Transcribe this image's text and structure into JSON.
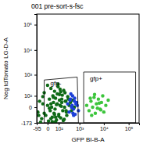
{
  "chart_data": {
    "type": "scatter",
    "title": "001 pre-sort-s-fsc",
    "x_label": "GFP BI-B-A",
    "y_label": "Neg tdTomato LG-D-A",
    "log": true,
    "xlim": [
      -95,
      262144
    ],
    "ylim": [
      -173,
      262144
    ],
    "xticks": [
      -95,
      0,
      {
        "value": 100,
        "label": "10²"
      },
      {
        "value": 1000,
        "label": "10³"
      },
      {
        "value": 10000,
        "label": "10⁴"
      },
      {
        "value": 100000,
        "label": "10⁵"
      }
    ],
    "yticks": [
      -173,
      0,
      {
        "value": 100,
        "label": "10²"
      },
      {
        "value": 1000,
        "label": "10³"
      },
      {
        "value": 10000,
        "label": "10⁴"
      },
      {
        "value": 100000,
        "label": "10⁵"
      }
    ],
    "series": [
      {
        "color": "#0f6a17",
        "x": [
          -80,
          -60,
          -40,
          -30,
          -20,
          -10,
          0,
          5,
          10,
          15,
          20,
          25,
          30,
          35,
          40,
          45,
          50,
          55,
          60,
          70,
          80,
          90,
          100,
          110,
          120,
          130,
          150,
          170,
          190,
          210,
          240,
          270,
          300,
          350,
          400,
          450,
          500,
          600,
          -50,
          -20,
          0,
          20,
          40,
          60,
          80,
          100,
          120,
          150,
          180,
          220,
          260,
          320,
          20,
          50,
          90,
          140,
          200,
          -30,
          10,
          60,
          110,
          160,
          250,
          -70,
          30,
          70,
          130,
          230
        ],
        "values": [
          -30,
          40,
          -100,
          20,
          150,
          -60,
          10,
          -140,
          60,
          -20,
          250,
          0,
          -80,
          100,
          30,
          -40,
          180,
          -10,
          70,
          -120,
          20,
          300,
          -50,
          120,
          10,
          -90,
          60,
          -20,
          200,
          0,
          40,
          -60,
          90,
          10,
          30,
          -20,
          50,
          0,
          -160,
          -40,
          350,
          -100,
          80,
          -150,
          130,
          -70,
          230,
          30,
          -130,
          150,
          -30,
          60,
          20,
          -50,
          400,
          5,
          -110,
          90,
          -5,
          -80,
          50,
          110,
          -20,
          -60,
          -150,
          15,
          170,
          40
        ]
      },
      {
        "color": "#1c3fd8",
        "x": [
          300,
          350,
          400,
          450,
          500,
          550,
          600,
          650,
          700,
          800,
          900,
          420,
          520,
          620,
          480,
          380,
          560,
          750
        ],
        "values": [
          20,
          -30,
          60,
          0,
          100,
          -10,
          40,
          -50,
          20,
          10,
          -20,
          130,
          -40,
          70,
          10,
          50,
          -60,
          30
        ]
      },
      {
        "color": "#3cc53c",
        "x": [
          2000,
          2500,
          3000,
          3500,
          4000,
          4500,
          5000,
          6000,
          7000,
          8000,
          9000,
          10000,
          12000,
          15000,
          3200,
          4200,
          5500,
          6500,
          2800,
          7500
        ],
        "values": [
          10,
          -20,
          40,
          0,
          80,
          -40,
          20,
          60,
          -10,
          30,
          100,
          -30,
          10,
          50,
          -60,
          120,
          -5,
          25,
          70,
          -15
        ]
      }
    ],
    "gates": [
      {
        "label": "gfp-",
        "points": [
          [
            -20,
            -173
          ],
          [
            -20,
            600
          ],
          [
            800,
            800
          ],
          [
            900,
            -173
          ]
        ]
      },
      {
        "label": "gfp+",
        "points": [
          [
            1500,
            -173
          ],
          [
            1500,
            1300
          ],
          [
            190000,
            1300
          ],
          [
            190000,
            -173
          ]
        ]
      }
    ]
  }
}
